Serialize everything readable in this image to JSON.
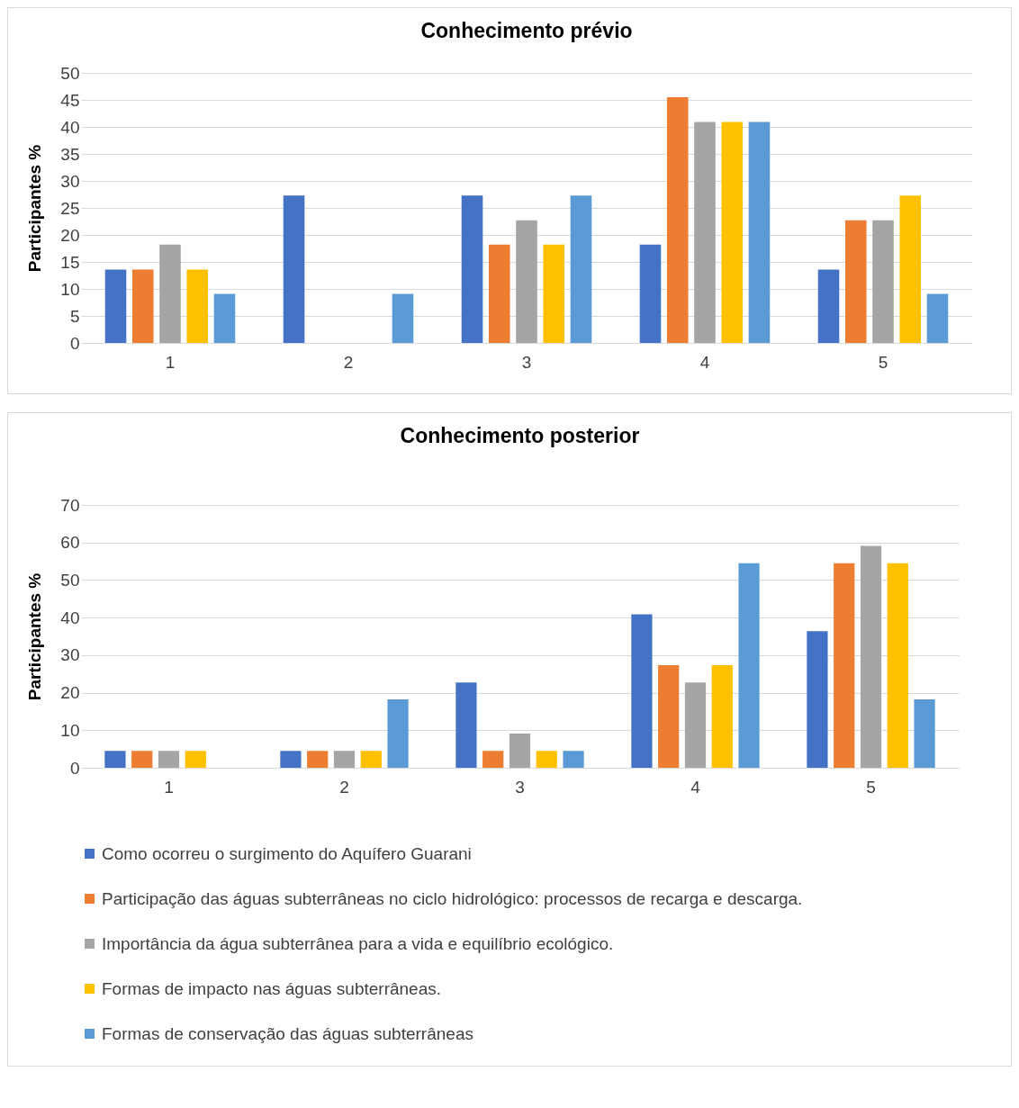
{
  "chart_data": [
    {
      "type": "bar",
      "title": "Conhecimento prévio",
      "ylabel": "Participantes %",
      "categories": [
        "1",
        "2",
        "3",
        "4",
        "5"
      ],
      "ylim": [
        0,
        50
      ],
      "yticks": [
        0,
        5,
        10,
        15,
        20,
        25,
        30,
        35,
        40,
        45,
        50
      ],
      "grid": "y",
      "legend": false,
      "series": [
        {
          "color": "#4472c4",
          "values": [
            13.6,
            27.3,
            27.3,
            18.2,
            13.6
          ]
        },
        {
          "color": "#ed7d31",
          "values": [
            13.6,
            0,
            18.2,
            45.5,
            22.7
          ]
        },
        {
          "color": "#a5a5a5",
          "values": [
            18.2,
            0,
            22.7,
            40.9,
            22.7
          ]
        },
        {
          "color": "#ffc000",
          "values": [
            13.6,
            0,
            18.2,
            40.9,
            27.3
          ]
        },
        {
          "color": "#5b9bd5",
          "values": [
            9.1,
            9.1,
            27.3,
            40.9,
            9.1
          ]
        }
      ]
    },
    {
      "type": "bar",
      "title": "Conhecimento posterior",
      "ylabel": "Participantes %",
      "categories": [
        "1",
        "2",
        "3",
        "4",
        "5"
      ],
      "ylim": [
        0,
        70
      ],
      "yticks": [
        0,
        10,
        20,
        30,
        40,
        50,
        60,
        70
      ],
      "grid": "y",
      "legend": "bottom",
      "series": [
        {
          "name": "Como ocorreu o surgimento do Aquífero Guarani",
          "color": "#4472c4",
          "values": [
            4.5,
            4.5,
            22.7,
            40.9,
            36.4
          ]
        },
        {
          "name": "Participação das águas subterrâneas no ciclo hidrológico: processos de recarga e descarga.",
          "color": "#ed7d31",
          "values": [
            4.5,
            4.5,
            4.5,
            27.3,
            54.5
          ]
        },
        {
          "name": "Importância da água subterrânea para a vida e equilíbrio ecológico.",
          "color": "#a5a5a5",
          "values": [
            4.5,
            4.5,
            9.1,
            22.7,
            59.1
          ]
        },
        {
          "name": "Formas de impacto nas águas subterrâneas.",
          "color": "#ffc000",
          "values": [
            4.5,
            4.5,
            4.5,
            27.3,
            54.5
          ]
        },
        {
          "name": "Formas de conservação das águas subterrâneas",
          "color": "#5b9bd5",
          "values": [
            0,
            18.2,
            4.5,
            54.5,
            18.2
          ]
        }
      ]
    }
  ]
}
